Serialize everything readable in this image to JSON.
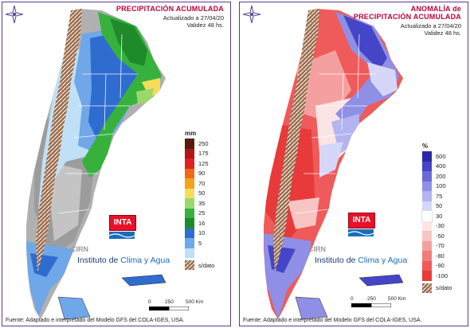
{
  "left": {
    "title_line1": "PRECIPITACIÓN ACUMULADA",
    "subtitle_line1": "Actualizado a 27/04/20",
    "subtitle_line2": "Validez 48 hs.",
    "legend_unit": "mm",
    "legend": [
      {
        "label": "250",
        "color": "#5a1a10"
      },
      {
        "label": "175",
        "color": "#b01515"
      },
      {
        "label": "125",
        "color": "#e02020"
      },
      {
        "label": "90",
        "color": "#ee6a1a"
      },
      {
        "label": "70",
        "color": "#f7a21b"
      },
      {
        "label": "50",
        "color": "#f6dc5a"
      },
      {
        "label": "35",
        "color": "#9ad86a"
      },
      {
        "label": "25",
        "color": "#36b23c"
      },
      {
        "label": "16",
        "color": "#1f8a2a"
      },
      {
        "label": "10",
        "color": "#2f6cd0"
      },
      {
        "label": "5",
        "color": "#6fa7e8"
      },
      {
        "label": "",
        "color": "#bfe0f6"
      }
    ],
    "nodata_label": "s/dato"
  },
  "right": {
    "title_line1": "ANOMALÍA de",
    "title_line2": "PRECIPITACIÓN ACUMULADA",
    "subtitle_line1": "Actualizado a 27/04/20",
    "subtitle_line2": "Validez 48 hs.",
    "legend_unit": "%",
    "legend": [
      {
        "label": "600",
        "color": "#2a2aa8"
      },
      {
        "label": "400",
        "color": "#4545c8"
      },
      {
        "label": "200",
        "color": "#6a6ad8"
      },
      {
        "label": "100",
        "color": "#8f8fe6"
      },
      {
        "label": "75",
        "color": "#b4b4f0"
      },
      {
        "label": "50",
        "color": "#d6d6f8"
      },
      {
        "label": "30",
        "color": "#ffffff"
      },
      {
        "label": "-30",
        "color": "#fbe4e4"
      },
      {
        "label": "-50",
        "color": "#f8c4c4"
      },
      {
        "label": "-70",
        "color": "#f5a0a0"
      },
      {
        "label": "-80",
        "color": "#f27a7a"
      },
      {
        "label": "-90",
        "color": "#ef5a5a"
      },
      {
        "label": "-100",
        "color": "#e83a3a"
      }
    ],
    "nodata_label": "s/dato"
  },
  "shared": {
    "inta_logo_text": "INTA",
    "cirn_text": "CIRN",
    "institute_prefix": "Instituto de",
    "institute_highlight": "Clima y Agua",
    "scale_labels": [
      "0",
      "250",
      "500 Km"
    ],
    "footer": "Fuente: Adaptado e interpretado del Modelo GFS del COLA-IGES, USA."
  },
  "colors": {
    "frame": "#5a3c8c",
    "title": "#c0003c",
    "relief_gray": "#a8a8a8",
    "nodata_brown": "#8a5a3a"
  }
}
